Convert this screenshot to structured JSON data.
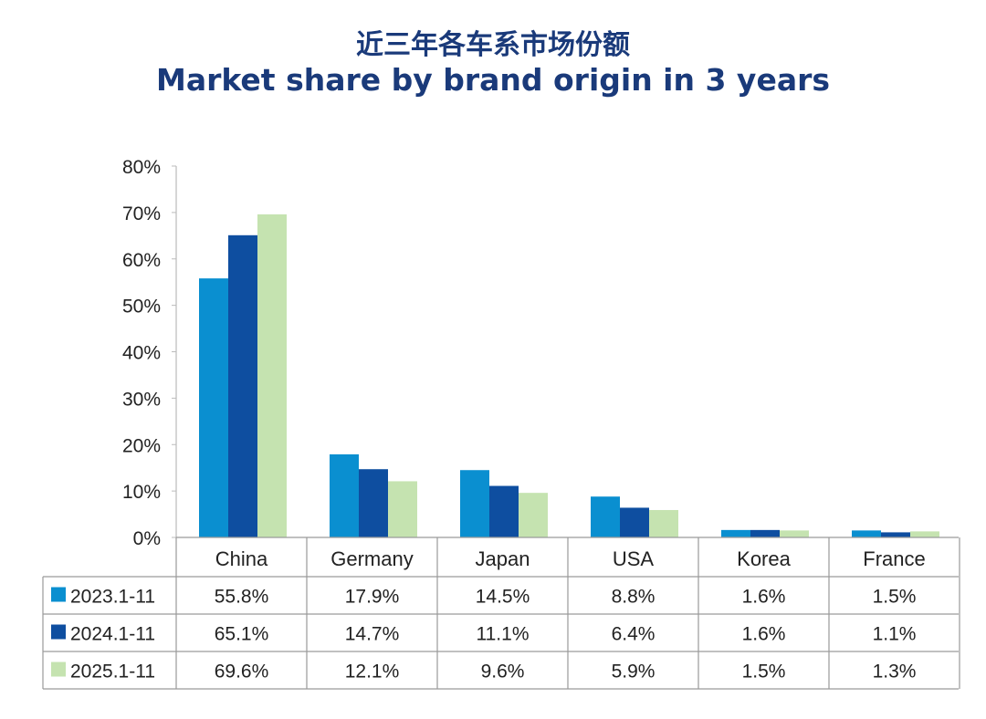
{
  "title_cn": "近三年各车系市场份额",
  "title_en": "Market share by brand origin in 3 years",
  "chart_data": {
    "type": "bar",
    "title": "Market share by brand origin in 3 years",
    "categories": [
      "China",
      "Germany",
      "Japan",
      "USA",
      "Korea",
      "France"
    ],
    "series": [
      {
        "name": "2023.1-11",
        "color": "#0a8fd0",
        "values": [
          55.8,
          17.9,
          14.5,
          8.8,
          1.6,
          1.5
        ],
        "labels": [
          "55.8%",
          "17.9%",
          "14.5%",
          "8.8%",
          "1.6%",
          "1.5%"
        ]
      },
      {
        "name": "2024.1-11",
        "color": "#0e4ea0",
        "values": [
          65.1,
          14.7,
          11.1,
          6.4,
          1.6,
          1.1
        ],
        "labels": [
          "65.1%",
          "14.7%",
          "11.1%",
          "6.4%",
          "1.6%",
          "1.1%"
        ]
      },
      {
        "name": "2025.1-11",
        "color": "#c5e3b0",
        "values": [
          69.6,
          12.1,
          9.6,
          5.9,
          1.5,
          1.3
        ],
        "labels": [
          "69.6%",
          "12.1%",
          "9.6%",
          "5.9%",
          "1.5%",
          "1.3%"
        ]
      }
    ],
    "ylim": [
      0,
      80
    ],
    "yticks": [
      0,
      10,
      20,
      30,
      40,
      50,
      60,
      70,
      80
    ],
    "ytick_labels": [
      "0%",
      "10%",
      "20%",
      "30%",
      "40%",
      "50%",
      "60%",
      "70%",
      "80%"
    ],
    "legend": "data-table"
  }
}
